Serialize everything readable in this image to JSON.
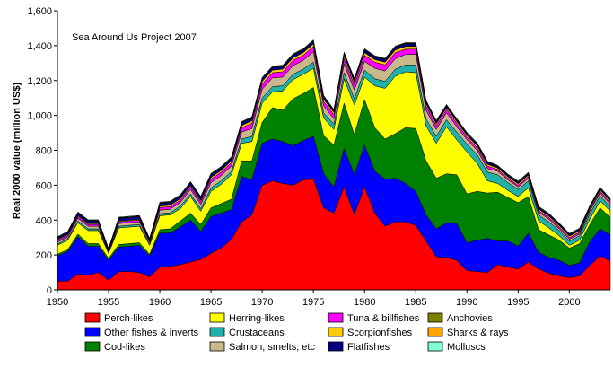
{
  "chart_data": {
    "type": "area",
    "stacked": true,
    "annotation": "Sea Around Us Project 2007",
    "xlabel": "",
    "ylabel": "Real 2000 value (million US$)",
    "xlim": [
      1950,
      2004
    ],
    "ylim": [
      0,
      1600
    ],
    "x_ticks": [
      "1950",
      "1955",
      "1960",
      "1965",
      "1970",
      "1975",
      "1980",
      "1985",
      "1990",
      "1995",
      "2000"
    ],
    "y_ticks": [
      "0",
      "200",
      "400",
      "600",
      "800",
      "1,000",
      "1,200",
      "1,400",
      "1,600"
    ],
    "grid": false,
    "legend_position": "bottom",
    "x": [
      1950,
      1951,
      1952,
      1953,
      1954,
      1955,
      1956,
      1957,
      1958,
      1959,
      1960,
      1961,
      1962,
      1963,
      1964,
      1965,
      1966,
      1967,
      1968,
      1969,
      1970,
      1971,
      1972,
      1973,
      1974,
      1975,
      1976,
      1977,
      1978,
      1979,
      1980,
      1981,
      1982,
      1983,
      1984,
      1985,
      1986,
      1987,
      1988,
      1989,
      1990,
      1991,
      1992,
      1993,
      1994,
      1995,
      1996,
      1997,
      1998,
      1999,
      2000,
      2001,
      2002,
      2003,
      2004
    ],
    "series": [
      {
        "name": "Perch-likes",
        "color": "#ff0000",
        "values": [
          50,
          50,
          90,
          85,
          100,
          55,
          105,
          105,
          100,
          75,
          130,
          135,
          145,
          160,
          175,
          210,
          240,
          290,
          390,
          430,
          600,
          625,
          610,
          600,
          630,
          635,
          470,
          440,
          590,
          430,
          590,
          440,
          365,
          390,
          390,
          370,
          280,
          190,
          185,
          170,
          110,
          105,
          100,
          145,
          130,
          120,
          160,
          120,
          95,
          80,
          70,
          80,
          140,
          195,
          165
        ]
      },
      {
        "name": "Other fishes & inverts",
        "color": "#0000ff",
        "values": [
          145,
          170,
          215,
          165,
          150,
          115,
          140,
          145,
          155,
          120,
          195,
          190,
          215,
          240,
          160,
          210,
          200,
          170,
          260,
          200,
          240,
          240,
          240,
          225,
          225,
          245,
          195,
          150,
          220,
          230,
          240,
          240,
          270,
          250,
          220,
          195,
          150,
          160,
          200,
          210,
          160,
          180,
          195,
          135,
          150,
          130,
          165,
          95,
          90,
          90,
          70,
          75,
          135,
          155,
          150
        ]
      },
      {
        "name": "Cod-likes",
        "color": "#008000",
        "values": [
          10,
          10,
          15,
          15,
          15,
          10,
          15,
          15,
          15,
          10,
          20,
          25,
          35,
          40,
          40,
          50,
          55,
          60,
          90,
          110,
          120,
          180,
          180,
          270,
          270,
          280,
          220,
          240,
          260,
          230,
          260,
          250,
          230,
          255,
          320,
          360,
          310,
          290,
          280,
          280,
          280,
          280,
          260,
          280,
          250,
          250,
          210,
          130,
          130,
          115,
          100,
          110,
          100,
          120,
          100
        ]
      },
      {
        "name": "Herring-likes",
        "color": "#ffff00",
        "values": [
          50,
          55,
          65,
          75,
          75,
          30,
          95,
          95,
          95,
          50,
          80,
          80,
          70,
          95,
          75,
          95,
          110,
          140,
          100,
          110,
          110,
          90,
          110,
          110,
          110,
          110,
          100,
          90,
          140,
          170,
          130,
          240,
          290,
          330,
          320,
          320,
          200,
          200,
          270,
          200,
          240,
          160,
          70,
          50,
          40,
          35,
          50,
          50,
          40,
          25,
          15,
          20,
          30,
          40,
          35
        ]
      },
      {
        "name": "Crustaceans",
        "color": "#20b2aa",
        "values": [
          8,
          8,
          10,
          10,
          10,
          5,
          10,
          10,
          10,
          8,
          12,
          12,
          15,
          15,
          15,
          20,
          20,
          20,
          25,
          30,
          30,
          30,
          30,
          30,
          30,
          35,
          30,
          30,
          35,
          35,
          40,
          40,
          40,
          40,
          40,
          45,
          40,
          40,
          40,
          45,
          45,
          50,
          50,
          50,
          45,
          40,
          40,
          35,
          35,
          30,
          25,
          25,
          30,
          30,
          25
        ]
      },
      {
        "name": "Salmon, smelts, etc",
        "color": "#c8b88a",
        "values": [
          10,
          10,
          15,
          15,
          15,
          5,
          15,
          15,
          15,
          10,
          20,
          20,
          20,
          25,
          25,
          30,
          30,
          30,
          40,
          45,
          50,
          50,
          50,
          50,
          50,
          60,
          40,
          30,
          50,
          50,
          50,
          60,
          60,
          60,
          60,
          60,
          50,
          40,
          40,
          30,
          25,
          25,
          20,
          20,
          15,
          15,
          15,
          15,
          15,
          10,
          10,
          10,
          15,
          15,
          15
        ]
      },
      {
        "name": "Tuna & billfishes",
        "color": "#ff00ff",
        "values": [
          10,
          10,
          10,
          10,
          10,
          5,
          10,
          10,
          10,
          5,
          15,
          15,
          15,
          15,
          15,
          20,
          20,
          20,
          25,
          30,
          30,
          30,
          30,
          30,
          30,
          30,
          25,
          25,
          30,
          30,
          35,
          35,
          35,
          35,
          30,
          30,
          25,
          20,
          20,
          20,
          15,
          15,
          15,
          10,
          10,
          10,
          10,
          10,
          10,
          10,
          10,
          10,
          10,
          10,
          10
        ]
      },
      {
        "name": "Scorpionfishes",
        "color": "#ffcc00",
        "values": [
          5,
          5,
          5,
          5,
          5,
          3,
          5,
          5,
          5,
          3,
          8,
          8,
          8,
          8,
          8,
          10,
          10,
          10,
          12,
          15,
          15,
          15,
          15,
          15,
          15,
          15,
          12,
          12,
          15,
          15,
          15,
          15,
          15,
          15,
          15,
          15,
          12,
          12,
          10,
          10,
          10,
          10,
          10,
          8,
          8,
          8,
          8,
          8,
          8,
          8,
          8,
          8,
          8,
          8,
          8
        ]
      },
      {
        "name": "Flatfishes",
        "color": "#000080",
        "values": [
          10,
          10,
          15,
          15,
          15,
          5,
          15,
          15,
          15,
          10,
          15,
          15,
          15,
          15,
          15,
          15,
          15,
          15,
          15,
          15,
          15,
          15,
          15,
          15,
          15,
          15,
          15,
          10,
          15,
          15,
          15,
          15,
          15,
          15,
          15,
          15,
          12,
          12,
          10,
          10,
          10,
          10,
          10,
          8,
          8,
          8,
          8,
          8,
          8,
          8,
          8,
          8,
          8,
          8,
          8
        ]
      },
      {
        "name": "Anchovies",
        "color": "#808000",
        "values": [
          2,
          2,
          2,
          2,
          2,
          1,
          2,
          2,
          2,
          1,
          3,
          3,
          3,
          3,
          3,
          3,
          3,
          3,
          3,
          3,
          3,
          3,
          3,
          3,
          3,
          3,
          3,
          3,
          3,
          3,
          3,
          3,
          3,
          3,
          3,
          3,
          3,
          3,
          3,
          3,
          3,
          3,
          3,
          3,
          3,
          3,
          3,
          3,
          3,
          3,
          3,
          3,
          3,
          3,
          3
        ]
      },
      {
        "name": "Sharks & rays",
        "color": "#ffa500",
        "values": [
          2,
          2,
          2,
          2,
          2,
          1,
          2,
          2,
          2,
          1,
          2,
          2,
          2,
          2,
          2,
          2,
          2,
          2,
          2,
          2,
          2,
          2,
          2,
          2,
          2,
          2,
          2,
          2,
          2,
          2,
          2,
          2,
          2,
          2,
          2,
          2,
          2,
          2,
          2,
          2,
          2,
          2,
          2,
          2,
          2,
          2,
          2,
          2,
          2,
          2,
          2,
          2,
          2,
          2,
          2
        ]
      },
      {
        "name": "Molluscs",
        "color": "#7fffd4",
        "values": [
          3,
          3,
          3,
          3,
          3,
          2,
          3,
          3,
          3,
          2,
          3,
          3,
          3,
          3,
          3,
          3,
          3,
          3,
          3,
          3,
          3,
          3,
          3,
          3,
          3,
          3,
          3,
          3,
          3,
          3,
          3,
          3,
          3,
          3,
          3,
          3,
          3,
          3,
          3,
          3,
          3,
          3,
          3,
          3,
          3,
          3,
          3,
          3,
          3,
          3,
          3,
          3,
          3,
          3,
          3
        ]
      }
    ]
  }
}
